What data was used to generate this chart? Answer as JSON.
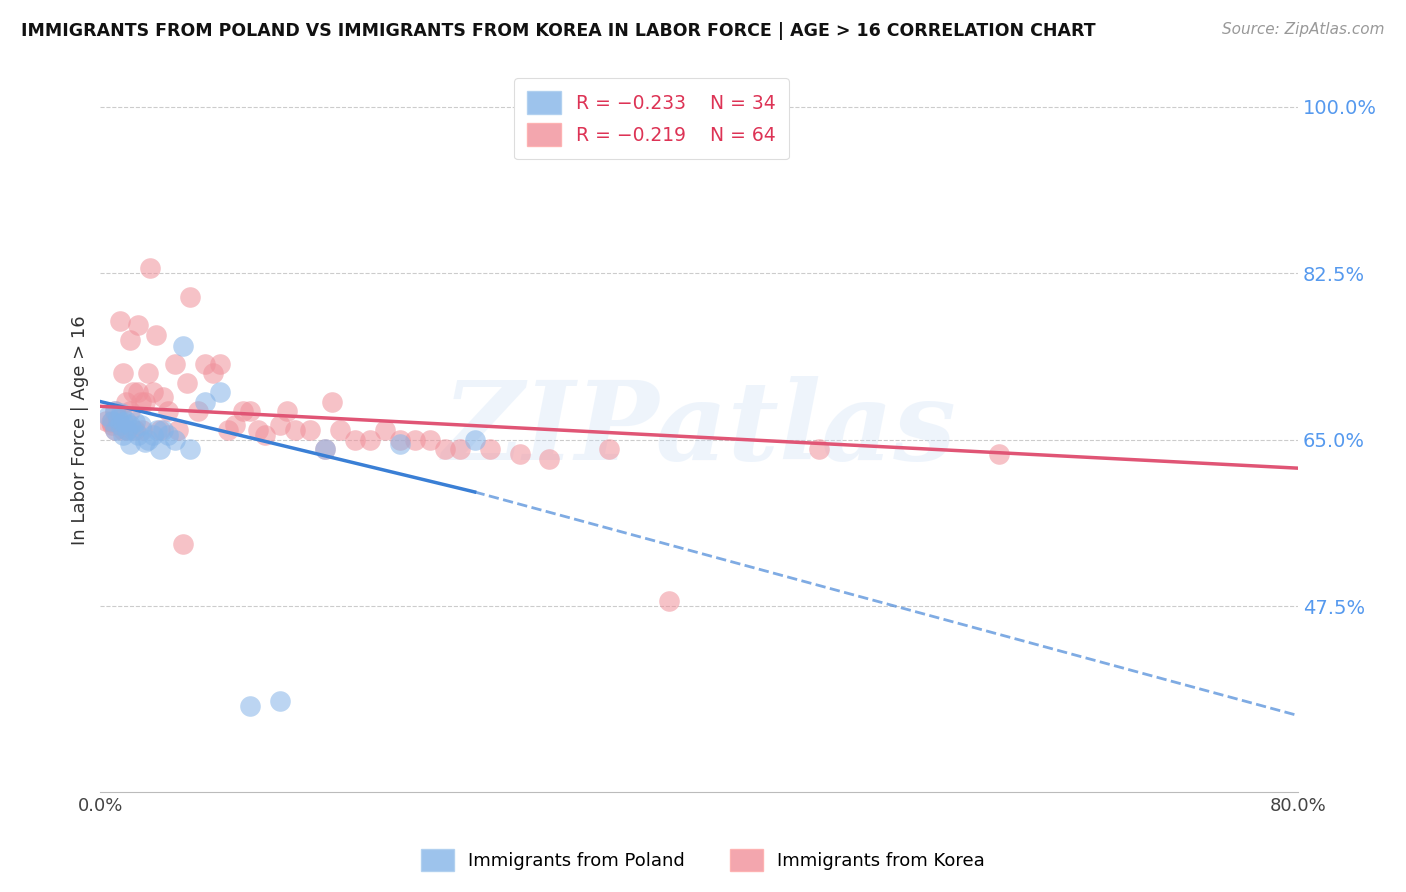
{
  "title": "IMMIGRANTS FROM POLAND VS IMMIGRANTS FROM KOREA IN LABOR FORCE | AGE > 16 CORRELATION CHART",
  "source": "Source: ZipAtlas.com",
  "ylabel": "In Labor Force | Age > 16",
  "xlim": [
    0.0,
    0.8
  ],
  "ylim": [
    0.28,
    1.04
  ],
  "yticks": [
    1.0,
    0.825,
    0.65,
    0.475
  ],
  "ytick_labels": [
    "100.0%",
    "82.5%",
    "65.0%",
    "47.5%"
  ],
  "xticks": [
    0.0,
    0.16,
    0.32,
    0.48,
    0.64,
    0.8
  ],
  "xtick_labels": [
    "0.0%",
    "",
    "",
    "",
    "",
    "80.0%"
  ],
  "poland_color": "#85b4e8",
  "korea_color": "#f0909a",
  "trend_poland_color": "#3a7fd5",
  "trend_korea_color": "#e05575",
  "legend_label_poland": "Immigrants from Poland",
  "legend_label_korea": "Immigrants from Korea",
  "watermark": "ZIPatlas",
  "poland_x": [
    0.005,
    0.008,
    0.01,
    0.01,
    0.012,
    0.013,
    0.014,
    0.015,
    0.015,
    0.017,
    0.018,
    0.02,
    0.02,
    0.022,
    0.023,
    0.025,
    0.027,
    0.03,
    0.032,
    0.035,
    0.038,
    0.04,
    0.042,
    0.045,
    0.05,
    0.055,
    0.06,
    0.07,
    0.08,
    0.1,
    0.12,
    0.15,
    0.2,
    0.25
  ],
  "poland_y": [
    0.675,
    0.67,
    0.68,
    0.66,
    0.672,
    0.665,
    0.678,
    0.668,
    0.655,
    0.67,
    0.66,
    0.665,
    0.645,
    0.66,
    0.668,
    0.655,
    0.665,
    0.648,
    0.65,
    0.655,
    0.66,
    0.64,
    0.66,
    0.655,
    0.65,
    0.748,
    0.64,
    0.69,
    0.7,
    0.37,
    0.375,
    0.64,
    0.645,
    0.65
  ],
  "korea_x": [
    0.004,
    0.007,
    0.008,
    0.01,
    0.01,
    0.012,
    0.013,
    0.015,
    0.015,
    0.017,
    0.018,
    0.02,
    0.02,
    0.022,
    0.023,
    0.025,
    0.025,
    0.027,
    0.028,
    0.03,
    0.032,
    0.033,
    0.035,
    0.037,
    0.04,
    0.042,
    0.045,
    0.05,
    0.052,
    0.055,
    0.058,
    0.06,
    0.065,
    0.07,
    0.075,
    0.08,
    0.085,
    0.09,
    0.095,
    0.1,
    0.105,
    0.11,
    0.12,
    0.125,
    0.13,
    0.14,
    0.15,
    0.155,
    0.16,
    0.17,
    0.18,
    0.19,
    0.2,
    0.21,
    0.22,
    0.23,
    0.24,
    0.26,
    0.28,
    0.3,
    0.34,
    0.38,
    0.48,
    0.6
  ],
  "korea_y": [
    0.67,
    0.668,
    0.665,
    0.68,
    0.66,
    0.672,
    0.775,
    0.72,
    0.66,
    0.69,
    0.66,
    0.755,
    0.68,
    0.7,
    0.66,
    0.77,
    0.7,
    0.69,
    0.66,
    0.69,
    0.72,
    0.83,
    0.7,
    0.76,
    0.66,
    0.695,
    0.68,
    0.73,
    0.66,
    0.54,
    0.71,
    0.8,
    0.68,
    0.73,
    0.72,
    0.73,
    0.66,
    0.665,
    0.68,
    0.68,
    0.66,
    0.655,
    0.665,
    0.68,
    0.66,
    0.66,
    0.64,
    0.69,
    0.66,
    0.65,
    0.65,
    0.66,
    0.65,
    0.65,
    0.65,
    0.64,
    0.64,
    0.64,
    0.635,
    0.63,
    0.64,
    0.48,
    0.64,
    0.635
  ],
  "trend_poland_x_start": 0.0,
  "trend_poland_x_solid_end": 0.25,
  "trend_poland_x_end": 0.8,
  "trend_poland_y_start": 0.69,
  "trend_poland_y_solid_end": 0.595,
  "trend_poland_y_end": 0.36,
  "trend_korea_x_start": 0.0,
  "trend_korea_x_end": 0.8,
  "trend_korea_y_start": 0.685,
  "trend_korea_y_end": 0.62
}
